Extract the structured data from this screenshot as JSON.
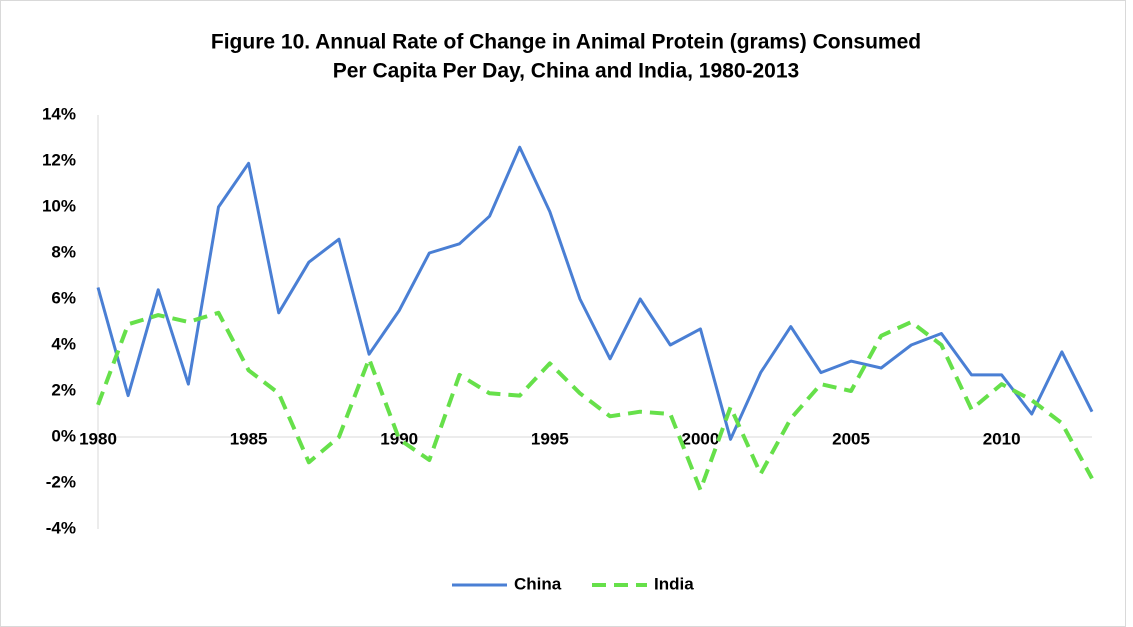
{
  "chart_data": {
    "type": "line",
    "title": [
      "Figure 10. Annual Rate of Change in Animal Protein (grams) Consumed",
      "Per Capita Per Day, China and India, 1980-2013"
    ],
    "x": [
      1980,
      1981,
      1982,
      1983,
      1984,
      1985,
      1986,
      1987,
      1988,
      1989,
      1990,
      1991,
      1992,
      1993,
      1994,
      1995,
      1996,
      1997,
      1998,
      1999,
      2000,
      2001,
      2002,
      2003,
      2004,
      2005,
      2006,
      2007,
      2008,
      2009,
      2010,
      2011,
      2012,
      2013
    ],
    "series": [
      {
        "name": "China",
        "color": "#4a7fd4",
        "line_style": "solid",
        "values": [
          6.5,
          1.8,
          6.4,
          2.3,
          10.0,
          11.9,
          5.4,
          7.6,
          8.6,
          3.6,
          5.5,
          8.0,
          8.4,
          9.6,
          12.6,
          9.8,
          6.0,
          3.4,
          6.0,
          4.0,
          4.7,
          -0.1,
          2.8,
          4.8,
          2.8,
          3.3,
          3.0,
          4.0,
          4.5,
          2.7,
          2.7,
          1.0,
          3.7,
          1.1
        ]
      },
      {
        "name": "India",
        "color": "#66e04a",
        "line_style": "dashed",
        "values": [
          1.4,
          4.9,
          5.3,
          5.0,
          5.4,
          2.9,
          1.9,
          -1.1,
          0.0,
          3.4,
          -0.1,
          -1.0,
          2.7,
          1.9,
          1.8,
          3.2,
          1.9,
          0.9,
          1.1,
          1.0,
          -2.3,
          1.3,
          -1.6,
          0.8,
          2.3,
          2.0,
          4.4,
          5.0,
          4.0,
          1.2,
          2.3,
          1.6,
          0.6,
          -1.8
        ]
      }
    ],
    "xlim": [
      1980,
      2013
    ],
    "xticks": [
      1980,
      1985,
      1990,
      1995,
      2000,
      2005,
      2010
    ],
    "ylim": [
      -4,
      14
    ],
    "yticks": [
      {
        "value": -4,
        "label": "-4%"
      },
      {
        "value": -2,
        "label": "-2%"
      },
      {
        "value": 0,
        "label": "0%"
      },
      {
        "value": 2,
        "label": "2%"
      },
      {
        "value": 4,
        "label": "4%"
      },
      {
        "value": 6,
        "label": "6%"
      },
      {
        "value": 8,
        "label": "8%"
      },
      {
        "value": 10,
        "label": "10%"
      },
      {
        "value": 12,
        "label": "12%"
      },
      {
        "value": 14,
        "label": "14%"
      }
    ],
    "grid": false,
    "legend": "bottom"
  }
}
